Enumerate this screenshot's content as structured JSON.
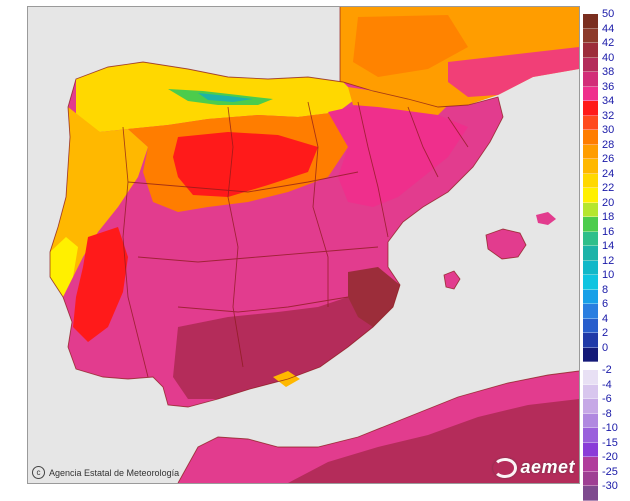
{
  "attribution": {
    "icon": "copyright-icon",
    "text": "Agencia Estatal de Meteorología"
  },
  "logo": {
    "icon": "aemet-logo-icon",
    "text": "aemet"
  },
  "map": {
    "type": "temperature-map",
    "region": "Iberian Peninsula and Balearic Islands",
    "sea_color": "#e6e6e6",
    "border_color": "#8b1a1a"
  },
  "legend": {
    "positive": [
      {
        "label": "50",
        "color": "#7a2e1f"
      },
      {
        "label": "44",
        "color": "#8c3a2a"
      },
      {
        "label": "42",
        "color": "#9c2d3a"
      },
      {
        "label": "40",
        "color": "#b42c5a"
      },
      {
        "label": "38",
        "color": "#d22e78"
      },
      {
        "label": "36",
        "color": "#ef2f8c"
      },
      {
        "label": "34",
        "color": "#ff1a1a"
      },
      {
        "label": "32",
        "color": "#ff4a1e"
      },
      {
        "label": "30",
        "color": "#ff7d00"
      },
      {
        "label": "28",
        "color": "#ff9d00"
      },
      {
        "label": "26",
        "color": "#ffb800"
      },
      {
        "label": "24",
        "color": "#ffd800"
      },
      {
        "label": "22",
        "color": "#fff000"
      },
      {
        "label": "20",
        "color": "#b5e62e"
      },
      {
        "label": "18",
        "color": "#4ccc4c"
      },
      {
        "label": "16",
        "color": "#2fbf8a"
      },
      {
        "label": "14",
        "color": "#1db3a8"
      },
      {
        "label": "12",
        "color": "#12b8c8"
      },
      {
        "label": "10",
        "color": "#10c4e0"
      },
      {
        "label": "8",
        "color": "#18a0e8"
      },
      {
        "label": "6",
        "color": "#2a7ee0"
      },
      {
        "label": "4",
        "color": "#285ecc"
      },
      {
        "label": "2",
        "color": "#203aa8"
      },
      {
        "label": "0",
        "color": "#141a78"
      }
    ],
    "negative": [
      {
        "label": "-2",
        "color": "#e8e0f4"
      },
      {
        "label": "-4",
        "color": "#d8c6ee"
      },
      {
        "label": "-6",
        "color": "#c6a8e6"
      },
      {
        "label": "-8",
        "color": "#b088e0"
      },
      {
        "label": "-10",
        "color": "#9a60dc"
      },
      {
        "label": "-15",
        "color": "#8a3cd8"
      },
      {
        "label": "-20",
        "color": "#b03c9c"
      },
      {
        "label": "-25",
        "color": "#9e3f93"
      },
      {
        "label": "-30",
        "color": "#7e4a8e"
      }
    ]
  }
}
